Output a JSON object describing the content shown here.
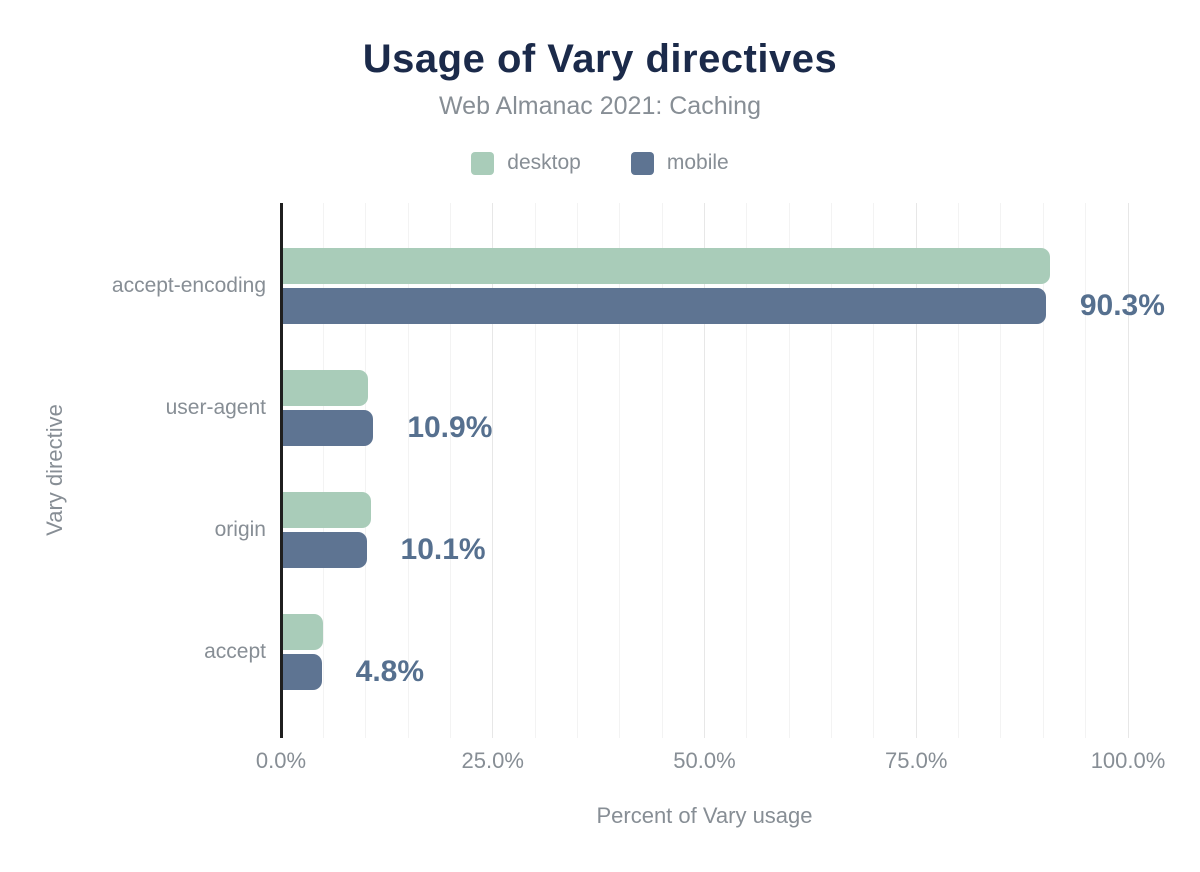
{
  "colors": {
    "desktop": "#a9ccb9",
    "mobile": "#5e7492",
    "title": "#1b2a4a",
    "text_muted": "#878e95",
    "annotation": "#56708f",
    "axis_line": "#1f1f1f",
    "grid_minor": "#f3f3f3",
    "grid_major": "#e7e7e7"
  },
  "chart_data": {
    "type": "bar",
    "orientation": "horizontal",
    "title": "Usage of Vary directives",
    "subtitle": "Web Almanac 2021: Caching",
    "xlabel": "Percent of Vary usage",
    "ylabel": "Vary directive",
    "categories": [
      "accept-encoding",
      "user-agent",
      "origin",
      "accept"
    ],
    "series": [
      {
        "name": "desktop",
        "color_key": "desktop",
        "values": [
          90.8,
          10.3,
          10.6,
          4.9
        ]
      },
      {
        "name": "mobile",
        "color_key": "mobile",
        "values": [
          90.3,
          10.9,
          10.1,
          4.8
        ]
      }
    ],
    "annotations": [
      {
        "category": "accept-encoding",
        "label": "90.3%"
      },
      {
        "category": "user-agent",
        "label": "10.9%"
      },
      {
        "category": "origin",
        "label": "10.1%"
      },
      {
        "category": "accept",
        "label": "4.8%"
      }
    ],
    "xlim": [
      0,
      100
    ],
    "x_ticks": [
      {
        "value": 0,
        "label": "0.0%"
      },
      {
        "value": 25,
        "label": "25.0%"
      },
      {
        "value": 50,
        "label": "50.0%"
      },
      {
        "value": 75,
        "label": "75.0%"
      },
      {
        "value": 100,
        "label": "100.0%"
      }
    ],
    "grid": {
      "show": true,
      "minor_step": 5,
      "major_step": 25
    },
    "legend_position": "top"
  }
}
